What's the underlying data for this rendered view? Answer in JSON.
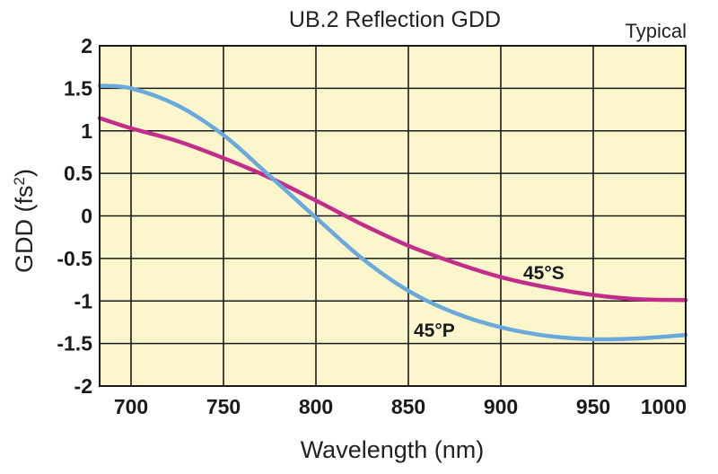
{
  "chart_data": {
    "type": "line",
    "title": "UB.2 Reflection GDD",
    "note": "Typical",
    "xlabel": "Wavelength (nm)",
    "ylabel": "GDD (fs",
    "ylabel_sup": "2",
    "ylabel_close": ")",
    "xlim": [
      683,
      1000
    ],
    "ylim": [
      -2,
      2
    ],
    "x_ticks": [
      700,
      750,
      800,
      850,
      900,
      950,
      1000
    ],
    "x_tick_labels": [
      "700",
      "750",
      "800",
      "850",
      "900",
      "950",
      "1000"
    ],
    "y_ticks": [
      2,
      1.5,
      1,
      0.5,
      0,
      -0.5,
      -1,
      -1.5,
      -2
    ],
    "y_tick_labels": [
      "2",
      "1.5",
      "1",
      "0.5",
      "0",
      "-0.5",
      "-1",
      "-1.5",
      "-2"
    ],
    "grid": true,
    "plot_background": "#fcf6cd",
    "series": [
      {
        "name": "45°S",
        "color": "#c42c8c",
        "x": [
          683,
          700,
          725,
          750,
          775,
          800,
          825,
          850,
          875,
          900,
          925,
          950,
          975,
          1000
        ],
        "y": [
          1.15,
          1.03,
          0.88,
          0.68,
          0.45,
          0.18,
          -0.1,
          -0.35,
          -0.55,
          -0.72,
          -0.84,
          -0.93,
          -0.98,
          -0.99
        ]
      },
      {
        "name": "45°P",
        "color": "#6aa9dc",
        "x": [
          683,
          700,
          725,
          750,
          775,
          800,
          825,
          850,
          875,
          900,
          925,
          950,
          975,
          1000
        ],
        "y": [
          1.53,
          1.5,
          1.3,
          0.95,
          0.47,
          -0.02,
          -0.5,
          -0.88,
          -1.14,
          -1.31,
          -1.41,
          -1.45,
          -1.44,
          -1.4
        ]
      }
    ]
  }
}
